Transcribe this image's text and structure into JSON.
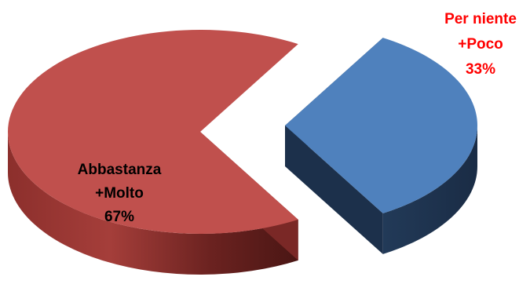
{
  "chart_data": {
    "type": "pie",
    "style": "3d-exploded",
    "slices": [
      {
        "label_lines": [
          "Abbastanza",
          "+Molto"
        ],
        "value": 67,
        "value_text": "67%",
        "color": "#c0504d",
        "label_color": "#000000"
      },
      {
        "label_lines": [
          "Per niente",
          "+Poco"
        ],
        "value": 33,
        "value_text": "33%",
        "color": "#4f81bd",
        "label_color": "#ff0000"
      }
    ],
    "legend": "none",
    "title": ""
  }
}
